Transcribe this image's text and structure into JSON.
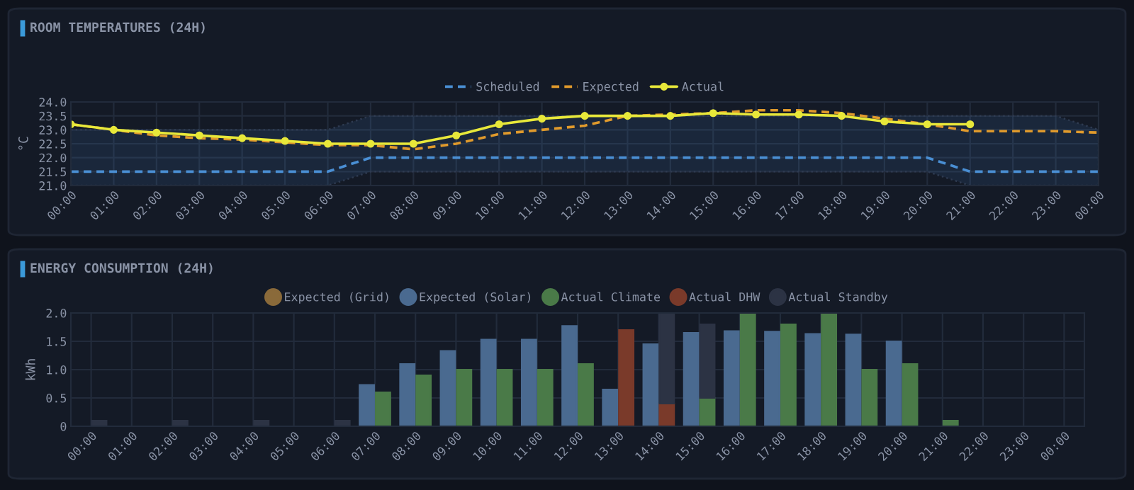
{
  "chart_data": [
    {
      "type": "line",
      "title": "ROOM TEMPERATURES (24H)",
      "ylabel": "°C",
      "categories": [
        "00:00",
        "01:00",
        "02:00",
        "03:00",
        "04:00",
        "05:00",
        "06:00",
        "07:00",
        "08:00",
        "09:00",
        "10:00",
        "11:00",
        "12:00",
        "13:00",
        "14:00",
        "15:00",
        "16:00",
        "17:00",
        "18:00",
        "19:00",
        "20:00",
        "21:00",
        "22:00",
        "23:00",
        "00:00"
      ],
      "series": [
        {
          "name": "Scheduled",
          "color": "#4a8fd4",
          "line_style": "dashed",
          "marker": "none",
          "values": [
            21.5,
            21.5,
            21.5,
            21.5,
            21.5,
            21.5,
            21.5,
            22.0,
            22.0,
            22.0,
            22.0,
            22.0,
            22.0,
            22.0,
            22.0,
            22.0,
            22.0,
            22.0,
            22.0,
            22.0,
            22.0,
            21.5,
            21.5,
            21.5,
            21.5
          ],
          "lower": [
            21.0,
            21.0,
            21.0,
            21.0,
            21.0,
            21.0,
            21.0,
            21.5,
            21.5,
            21.5,
            21.5,
            21.5,
            21.5,
            21.5,
            21.5,
            21.5,
            21.5,
            21.5,
            21.5,
            21.5,
            21.5,
            21.0,
            21.0,
            21.0,
            21.0
          ],
          "upper": [
            23.0,
            23.0,
            23.0,
            23.0,
            23.0,
            23.0,
            23.0,
            23.5,
            23.5,
            23.5,
            23.5,
            23.5,
            23.5,
            23.5,
            23.5,
            23.5,
            23.5,
            23.5,
            23.5,
            23.5,
            23.5,
            23.5,
            23.5,
            23.5,
            23.0
          ]
        },
        {
          "name": "Expected",
          "color": "#e09a2c",
          "line_style": "dashed",
          "marker": "none",
          "values": [
            23.2,
            23.0,
            22.8,
            22.7,
            22.65,
            22.55,
            22.45,
            22.45,
            22.3,
            22.5,
            22.85,
            23.0,
            23.15,
            23.5,
            23.55,
            23.6,
            23.7,
            23.7,
            23.6,
            23.4,
            23.2,
            22.95,
            22.95,
            22.95,
            22.9
          ]
        },
        {
          "name": "Actual",
          "color": "#e8e83a",
          "line_style": "solid",
          "marker": "circle",
          "values": [
            23.2,
            23.0,
            22.9,
            22.8,
            22.7,
            22.6,
            22.5,
            22.5,
            22.5,
            22.8,
            23.2,
            23.4,
            23.5,
            23.5,
            23.5,
            23.6,
            23.55,
            23.55,
            23.5,
            23.3,
            23.2,
            23.2,
            null,
            null,
            null
          ]
        }
      ],
      "ylim": [
        21.0,
        24.0
      ],
      "yticks": [
        {
          "value": 21,
          "label": "21.0"
        },
        21.5,
        {
          "value": 22,
          "label": "22.0"
        },
        22.5,
        {
          "value": 23,
          "label": "23.0"
        },
        23.5,
        {
          "value": 24,
          "label": "24.0"
        }
      ],
      "grid": true,
      "legend": "top"
    },
    {
      "type": "bar",
      "title": "ENERGY CONSUMPTION (24H)",
      "ylabel": "kWh",
      "categories": [
        "00:00",
        "01:00",
        "02:00",
        "03:00",
        "04:00",
        "05:00",
        "06:00",
        "07:00",
        "08:00",
        "09:00",
        "10:00",
        "11:00",
        "12:00",
        "13:00",
        "14:00",
        "15:00",
        "16:00",
        "17:00",
        "18:00",
        "19:00",
        "20:00",
        "21:00",
        "22:00",
        "23:00",
        "00:00"
      ],
      "series": [
        {
          "name": "Expected (Grid)",
          "color": "#8a6a3a",
          "values": [
            null,
            null,
            null,
            null,
            null,
            null,
            null,
            null,
            null,
            null,
            null,
            null,
            null,
            null,
            null,
            null,
            null,
            null,
            null,
            null,
            null,
            null,
            null,
            null,
            null
          ]
        },
        {
          "name": "Expected (Solar)",
          "color": "#4a6a90",
          "values": [
            null,
            null,
            null,
            null,
            null,
            null,
            null,
            0.73,
            1.1,
            1.33,
            1.53,
            1.53,
            1.77,
            0.65,
            1.45,
            1.65,
            1.68,
            1.67,
            1.63,
            1.62,
            1.5,
            null,
            null,
            null,
            null
          ]
        },
        {
          "name": "Actual Climate",
          "color": "#4a7a48",
          "values": [
            null,
            null,
            null,
            null,
            null,
            null,
            null,
            0.6,
            0.9,
            1.0,
            1.0,
            1.0,
            1.1,
            null,
            null,
            0.5,
            2.0,
            1.8,
            2.0,
            1.0,
            1.1,
            0.1,
            null,
            null,
            null
          ]
        },
        {
          "name": "Actual DHW",
          "color": "#7a3a2a",
          "values": [
            null,
            null,
            null,
            null,
            null,
            null,
            null,
            null,
            null,
            null,
            null,
            null,
            null,
            1.7,
            0.4,
            null,
            null,
            null,
            null,
            null,
            null,
            null,
            null,
            null,
            null
          ]
        },
        {
          "name": "Actual Standby",
          "color": "#2c3344",
          "values": [
            0.1,
            null,
            0.1,
            null,
            0.1,
            null,
            0.1,
            null,
            null,
            null,
            null,
            null,
            null,
            null,
            1.6,
            1.3,
            null,
            null,
            null,
            null,
            null,
            null,
            null,
            null,
            null
          ],
          "base": [
            0,
            null,
            0,
            null,
            0,
            null,
            0,
            null,
            null,
            null,
            null,
            null,
            null,
            null,
            0.4,
            0.5,
            null,
            null,
            null,
            null,
            null,
            null,
            null,
            null,
            null
          ]
        }
      ],
      "ylim": [
        0,
        2.0
      ],
      "yticks": [
        0,
        0.5,
        {
          "value": 1,
          "label": "1.0"
        },
        1.5,
        {
          "value": 2,
          "label": "2.0"
        }
      ],
      "grid": true,
      "legend": "top"
    }
  ]
}
